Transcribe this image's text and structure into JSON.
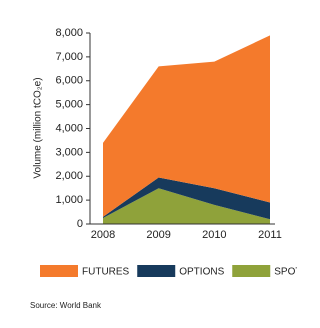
{
  "chart_data": {
    "type": "stacked_area",
    "y_label": "Volume (million tCO₂e)",
    "categories": [
      "2008",
      "2009",
      "2010",
      "2011"
    ],
    "series": [
      {
        "name": "SPOT",
        "color": "#8fa23a",
        "values": [
          250,
          1500,
          800,
          200
        ]
      },
      {
        "name": "OPTIONS",
        "color": "#173a5c",
        "values": [
          50,
          450,
          700,
          700
        ]
      },
      {
        "name": "FUTURES",
        "color": "#f47a2c",
        "values": [
          3100,
          4650,
          5300,
          7000
        ]
      }
    ],
    "legend_order": [
      2,
      1,
      0
    ],
    "ylim": [
      0,
      8000
    ],
    "yticks": [
      0,
      {
        "value": 1000,
        "label": "1,000"
      },
      {
        "value": 2000,
        "label": "2,000"
      },
      {
        "value": 3000,
        "label": "3,000"
      },
      {
        "value": 4000,
        "label": "4,000"
      },
      {
        "value": 5000,
        "label": "5,000"
      },
      {
        "value": 6000,
        "label": "6,000"
      },
      {
        "value": 7000,
        "label": "7,000"
      },
      {
        "value": 8000,
        "label": "8,000"
      }
    ],
    "source": "Source: World Bank"
  }
}
